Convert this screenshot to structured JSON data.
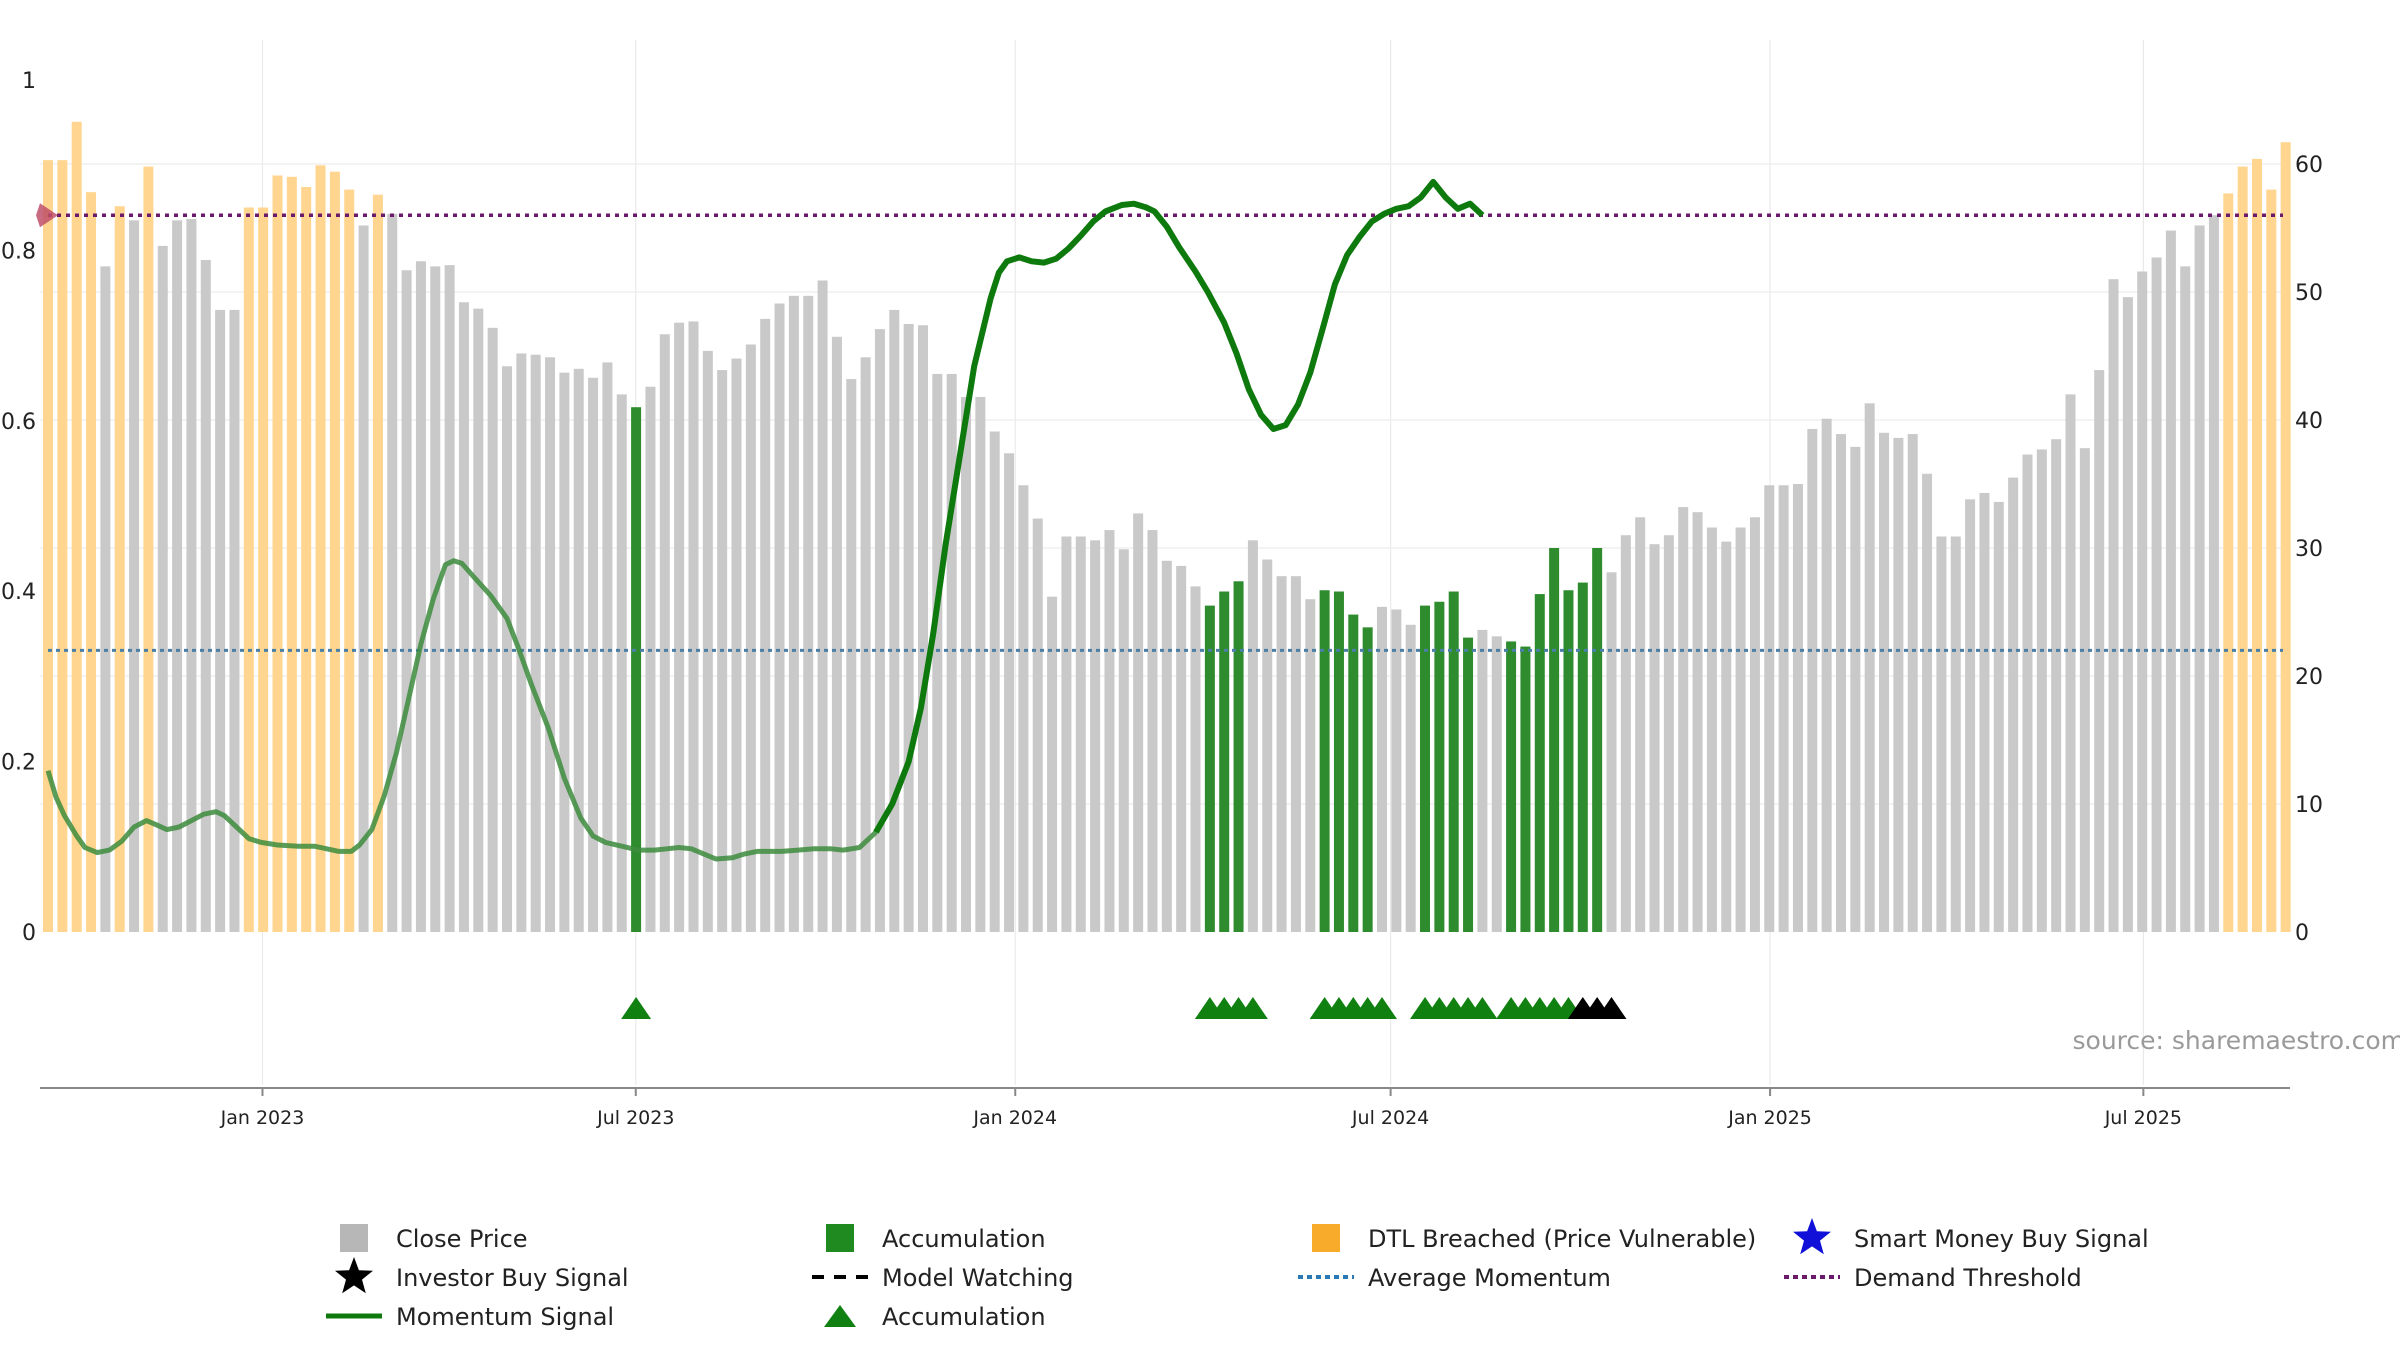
{
  "chart_data": {
    "type": "bar",
    "left_axis": {
      "ticks": [
        "0",
        "0.2",
        "0.4",
        "0.6",
        "0.8",
        "1"
      ],
      "ylim": [
        0,
        1
      ]
    },
    "right_axis": {
      "ticks": [
        "0",
        "10",
        "20",
        "30",
        "40",
        "50",
        "60"
      ],
      "ylim": [
        0,
        60
      ]
    },
    "x_ticks": [
      "Jan 2023",
      "Jul 2023",
      "Jan 2024",
      "Jul 2024",
      "Jan 2025",
      "Jul 2025"
    ],
    "date_range": [
      "2022-09-19",
      "2025-09-08"
    ],
    "price_right_axis": [
      {
        "v": 60.3,
        "s": "dtl"
      },
      {
        "v": 60.3,
        "s": "dtl"
      },
      {
        "v": 63.3,
        "s": "dtl"
      },
      {
        "v": 57.8,
        "s": "dtl"
      },
      {
        "v": 52.0,
        "s": "close"
      },
      {
        "v": 56.7,
        "s": "dtl"
      },
      {
        "v": 55.6,
        "s": "close"
      },
      {
        "v": 59.8,
        "s": "dtl"
      },
      {
        "v": 53.6,
        "s": "close"
      },
      {
        "v": 55.6,
        "s": "close"
      },
      {
        "v": 55.7,
        "s": "close"
      },
      {
        "v": 52.5,
        "s": "close"
      },
      {
        "v": 48.6,
        "s": "close"
      },
      {
        "v": 48.6,
        "s": "close"
      },
      {
        "v": 56.6,
        "s": "dtl"
      },
      {
        "v": 56.6,
        "s": "dtl"
      },
      {
        "v": 59.1,
        "s": "dtl"
      },
      {
        "v": 59.0,
        "s": "dtl"
      },
      {
        "v": 58.2,
        "s": "dtl"
      },
      {
        "v": 59.9,
        "s": "dtl"
      },
      {
        "v": 59.4,
        "s": "dtl"
      },
      {
        "v": 58.0,
        "s": "dtl"
      },
      {
        "v": 55.2,
        "s": "close"
      },
      {
        "v": 57.6,
        "s": "dtl"
      },
      {
        "v": 56.1,
        "s": "close"
      },
      {
        "v": 51.7,
        "s": "close"
      },
      {
        "v": 52.4,
        "s": "close"
      },
      {
        "v": 52.0,
        "s": "close"
      },
      {
        "v": 52.1,
        "s": "close"
      },
      {
        "v": 49.2,
        "s": "close"
      },
      {
        "v": 48.7,
        "s": "close"
      },
      {
        "v": 47.2,
        "s": "close"
      },
      {
        "v": 44.2,
        "s": "close"
      },
      {
        "v": 45.2,
        "s": "close"
      },
      {
        "v": 45.1,
        "s": "close"
      },
      {
        "v": 44.9,
        "s": "close"
      },
      {
        "v": 43.7,
        "s": "close"
      },
      {
        "v": 44.0,
        "s": "close"
      },
      {
        "v": 43.3,
        "s": "close"
      },
      {
        "v": 44.5,
        "s": "close"
      },
      {
        "v": 42.0,
        "s": "close"
      },
      {
        "v": 41.0,
        "s": "acc"
      },
      {
        "v": 42.6,
        "s": "close"
      },
      {
        "v": 46.7,
        "s": "close"
      },
      {
        "v": 47.6,
        "s": "close"
      },
      {
        "v": 47.7,
        "s": "close"
      },
      {
        "v": 45.4,
        "s": "close"
      },
      {
        "v": 43.9,
        "s": "close"
      },
      {
        "v": 44.8,
        "s": "close"
      },
      {
        "v": 45.9,
        "s": "close"
      },
      {
        "v": 47.9,
        "s": "close"
      },
      {
        "v": 49.1,
        "s": "close"
      },
      {
        "v": 49.7,
        "s": "close"
      },
      {
        "v": 49.7,
        "s": "close"
      },
      {
        "v": 50.9,
        "s": "close"
      },
      {
        "v": 46.5,
        "s": "close"
      },
      {
        "v": 43.2,
        "s": "close"
      },
      {
        "v": 44.9,
        "s": "close"
      },
      {
        "v": 47.1,
        "s": "close"
      },
      {
        "v": 48.6,
        "s": "close"
      },
      {
        "v": 47.5,
        "s": "close"
      },
      {
        "v": 47.4,
        "s": "close"
      },
      {
        "v": 43.6,
        "s": "close"
      },
      {
        "v": 43.6,
        "s": "close"
      },
      {
        "v": 41.8,
        "s": "close"
      },
      {
        "v": 41.8,
        "s": "close"
      },
      {
        "v": 39.1,
        "s": "close"
      },
      {
        "v": 37.4,
        "s": "close"
      },
      {
        "v": 34.9,
        "s": "close"
      },
      {
        "v": 32.3,
        "s": "close"
      },
      {
        "v": 26.2,
        "s": "close"
      },
      {
        "v": 30.9,
        "s": "close"
      },
      {
        "v": 30.9,
        "s": "close"
      },
      {
        "v": 30.6,
        "s": "close"
      },
      {
        "v": 31.4,
        "s": "close"
      },
      {
        "v": 29.9,
        "s": "close"
      },
      {
        "v": 32.7,
        "s": "close"
      },
      {
        "v": 31.4,
        "s": "close"
      },
      {
        "v": 29.0,
        "s": "close"
      },
      {
        "v": 28.6,
        "s": "close"
      },
      {
        "v": 27.0,
        "s": "close"
      },
      {
        "v": 25.5,
        "s": "acc"
      },
      {
        "v": 26.6,
        "s": "acc"
      },
      {
        "v": 27.4,
        "s": "acc"
      },
      {
        "v": 30.6,
        "s": "close"
      },
      {
        "v": 29.1,
        "s": "close"
      },
      {
        "v": 27.8,
        "s": "close"
      },
      {
        "v": 27.8,
        "s": "close"
      },
      {
        "v": 26.0,
        "s": "close"
      },
      {
        "v": 26.7,
        "s": "acc"
      },
      {
        "v": 26.6,
        "s": "acc"
      },
      {
        "v": 24.8,
        "s": "acc"
      },
      {
        "v": 23.8,
        "s": "acc"
      },
      {
        "v": 25.4,
        "s": "close"
      },
      {
        "v": 25.2,
        "s": "close"
      },
      {
        "v": 24.0,
        "s": "close"
      },
      {
        "v": 25.5,
        "s": "acc"
      },
      {
        "v": 25.8,
        "s": "acc"
      },
      {
        "v": 26.6,
        "s": "acc"
      },
      {
        "v": 23.0,
        "s": "acc"
      },
      {
        "v": 23.6,
        "s": "close"
      },
      {
        "v": 23.1,
        "s": "close"
      },
      {
        "v": 22.7,
        "s": "acc"
      },
      {
        "v": 22.3,
        "s": "acc"
      },
      {
        "v": 26.4,
        "s": "acc"
      },
      {
        "v": 30.0,
        "s": "acc"
      },
      {
        "v": 26.7,
        "s": "acc"
      },
      {
        "v": 27.3,
        "s": "acc"
      },
      {
        "v": 30.0,
        "s": "acc"
      },
      {
        "v": 28.1,
        "s": "close"
      },
      {
        "v": 31.0,
        "s": "close"
      },
      {
        "v": 32.4,
        "s": "close"
      },
      {
        "v": 30.3,
        "s": "close"
      },
      {
        "v": 31.0,
        "s": "close"
      },
      {
        "v": 33.2,
        "s": "close"
      },
      {
        "v": 32.8,
        "s": "close"
      },
      {
        "v": 31.6,
        "s": "close"
      },
      {
        "v": 30.5,
        "s": "close"
      },
      {
        "v": 31.6,
        "s": "close"
      },
      {
        "v": 32.4,
        "s": "close"
      },
      {
        "v": 34.9,
        "s": "close"
      },
      {
        "v": 34.9,
        "s": "close"
      },
      {
        "v": 35.0,
        "s": "close"
      },
      {
        "v": 39.3,
        "s": "close"
      },
      {
        "v": 40.1,
        "s": "close"
      },
      {
        "v": 38.9,
        "s": "close"
      },
      {
        "v": 37.9,
        "s": "close"
      },
      {
        "v": 41.3,
        "s": "close"
      },
      {
        "v": 39.0,
        "s": "close"
      },
      {
        "v": 38.6,
        "s": "close"
      },
      {
        "v": 38.9,
        "s": "close"
      },
      {
        "v": 35.8,
        "s": "close"
      },
      {
        "v": 30.9,
        "s": "close"
      },
      {
        "v": 30.9,
        "s": "close"
      },
      {
        "v": 33.8,
        "s": "close"
      },
      {
        "v": 34.3,
        "s": "close"
      },
      {
        "v": 33.6,
        "s": "close"
      },
      {
        "v": 35.5,
        "s": "close"
      },
      {
        "v": 37.3,
        "s": "close"
      },
      {
        "v": 37.7,
        "s": "close"
      },
      {
        "v": 38.5,
        "s": "close"
      },
      {
        "v": 42.0,
        "s": "close"
      },
      {
        "v": 37.8,
        "s": "close"
      },
      {
        "v": 43.9,
        "s": "close"
      },
      {
        "v": 51.0,
        "s": "close"
      },
      {
        "v": 49.6,
        "s": "close"
      },
      {
        "v": 51.6,
        "s": "close"
      },
      {
        "v": 52.7,
        "s": "close"
      },
      {
        "v": 54.8,
        "s": "close"
      },
      {
        "v": 52.0,
        "s": "close"
      },
      {
        "v": 55.2,
        "s": "close"
      },
      {
        "v": 56.0,
        "s": "close"
      },
      {
        "v": 57.7,
        "s": "dtl"
      },
      {
        "v": 59.8,
        "s": "dtl"
      },
      {
        "v": 60.4,
        "s": "dtl"
      },
      {
        "v": 58.0,
        "s": "dtl"
      },
      {
        "v": 61.7,
        "s": "dtl"
      }
    ],
    "momentum_right_axis": [
      [
        0,
        12.6
      ],
      [
        4,
        10.5
      ],
      [
        8,
        9.1
      ],
      [
        14,
        7.5
      ],
      [
        18,
        6.6
      ],
      [
        24,
        6.2
      ],
      [
        30,
        6.4
      ],
      [
        36,
        7.1
      ],
      [
        42,
        8.2
      ],
      [
        48,
        8.7
      ],
      [
        54,
        8.3
      ],
      [
        58,
        8.0
      ],
      [
        64,
        8.2
      ],
      [
        70,
        8.7
      ],
      [
        76,
        9.2
      ],
      [
        82,
        9.4
      ],
      [
        86,
        9.1
      ],
      [
        92,
        8.2
      ],
      [
        98,
        7.3
      ],
      [
        104,
        7.0
      ],
      [
        112,
        6.8
      ],
      [
        122,
        6.7
      ],
      [
        130,
        6.7
      ],
      [
        136,
        6.5
      ],
      [
        142,
        6.3
      ],
      [
        148,
        6.3
      ],
      [
        152,
        6.8
      ],
      [
        158,
        8.0
      ],
      [
        164,
        10.6
      ],
      [
        170,
        14.0
      ],
      [
        176,
        18.2
      ],
      [
        182,
        22.5
      ],
      [
        188,
        26.0
      ],
      [
        194,
        28.7
      ],
      [
        198,
        29.0
      ],
      [
        202,
        28.8
      ],
      [
        208,
        27.7
      ],
      [
        216,
        26.3
      ],
      [
        224,
        24.5
      ],
      [
        230,
        22.0
      ],
      [
        236,
        19.3
      ],
      [
        244,
        16.0
      ],
      [
        252,
        12.0
      ],
      [
        260,
        8.9
      ],
      [
        266,
        7.5
      ],
      [
        272,
        7.0
      ],
      [
        280,
        6.7
      ],
      [
        288,
        6.4
      ],
      [
        296,
        6.4
      ],
      [
        302,
        6.5
      ],
      [
        308,
        6.6
      ],
      [
        314,
        6.5
      ],
      [
        320,
        6.1
      ],
      [
        326,
        5.7
      ],
      [
        334,
        5.8
      ],
      [
        340,
        6.1
      ],
      [
        346,
        6.3
      ],
      [
        352,
        6.3
      ],
      [
        358,
        6.3
      ],
      [
        366,
        6.4
      ],
      [
        374,
        6.5
      ],
      [
        382,
        6.5
      ],
      [
        388,
        6.4
      ],
      [
        396,
        6.6
      ],
      [
        404,
        7.8
      ],
      [
        412,
        10.0
      ],
      [
        420,
        13.3
      ],
      [
        426,
        17.5
      ],
      [
        432,
        23.3
      ],
      [
        438,
        30.2
      ],
      [
        444,
        36.2
      ],
      [
        452,
        44.2
      ],
      [
        460,
        49.5
      ],
      [
        464,
        51.5
      ],
      [
        468,
        52.4
      ],
      [
        474,
        52.7
      ],
      [
        480,
        52.4
      ],
      [
        486,
        52.3
      ],
      [
        492,
        52.6
      ],
      [
        498,
        53.4
      ],
      [
        504,
        54.4
      ],
      [
        510,
        55.5
      ],
      [
        516,
        56.3
      ],
      [
        524,
        56.8
      ],
      [
        530,
        56.9
      ],
      [
        536,
        56.6
      ],
      [
        540,
        56.3
      ],
      [
        546,
        55.1
      ],
      [
        552,
        53.5
      ],
      [
        560,
        51.6
      ],
      [
        566,
        50.0
      ],
      [
        574,
        47.6
      ],
      [
        580,
        45.2
      ],
      [
        586,
        42.4
      ],
      [
        592,
        40.4
      ],
      [
        598,
        39.3
      ],
      [
        604,
        39.6
      ],
      [
        610,
        41.2
      ],
      [
        616,
        43.7
      ],
      [
        622,
        47.1
      ],
      [
        628,
        50.6
      ],
      [
        634,
        52.9
      ],
      [
        640,
        54.3
      ],
      [
        646,
        55.5
      ],
      [
        652,
        56.1
      ],
      [
        658,
        56.5
      ],
      [
        664,
        56.7
      ],
      [
        670,
        57.4
      ],
      [
        676,
        58.6
      ],
      [
        682,
        57.4
      ],
      [
        688,
        56.5
      ],
      [
        694,
        56.9
      ],
      [
        700,
        56.0
      ]
    ],
    "avg_momentum_right_axis": 22.0,
    "demand_threshold_right_axis": 56.0,
    "accumulation_markers_weeks": [
      41,
      81,
      82,
      83,
      84,
      89,
      90,
      91,
      92,
      93,
      96,
      97,
      98,
      99,
      100,
      102,
      103,
      104,
      105,
      106
    ],
    "investor_buy_signal_markers_weeks": [
      107,
      108,
      109
    ],
    "annotations": {
      "source": "source: sharemaestro.com"
    },
    "colors": {
      "close": "#c9c9c9",
      "acc": "#2e8b2e",
      "dtl": "#ffd58f",
      "momentum_faded": "#3d8c3d",
      "momentum_strong": "#0e7a0e",
      "avg_line": "#4a7fa6",
      "threshold_line": "#6b1a6b",
      "marker_green": "#108010",
      "marker_black": "#000000"
    },
    "legend": [
      {
        "label": "Close Price",
        "kind": "square",
        "color": "#b7b7b7"
      },
      {
        "label": "Accumulation",
        "kind": "square",
        "color": "#1f8a1f"
      },
      {
        "label": "DTL Breached (Price Vulnerable)",
        "kind": "square",
        "color": "#f8aa2a"
      },
      {
        "label": "Smart Money Buy Signal",
        "kind": "star",
        "color": "#1010d8"
      },
      {
        "label": "Investor Buy Signal",
        "kind": "star",
        "color": "#000000"
      },
      {
        "label": "Model Watching",
        "kind": "dash",
        "color": "#000000"
      },
      {
        "label": "Average Momentum",
        "kind": "dot",
        "color": "#2a79b4"
      },
      {
        "label": "Demand Threshold",
        "kind": "dot",
        "color": "#6b1a6b"
      },
      {
        "label": "Momentum Signal",
        "kind": "line",
        "color": "#0e7a0e"
      },
      {
        "label": "Accumulation",
        "kind": "triangle",
        "color": "#108010"
      }
    ]
  }
}
